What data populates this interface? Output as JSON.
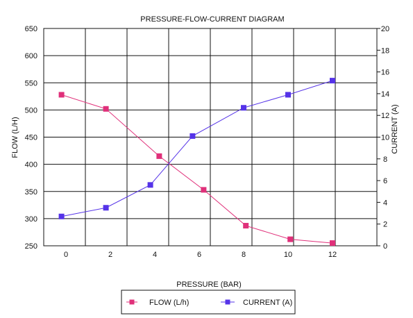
{
  "chart_data": {
    "type": "line",
    "title": "PRESSURE-FLOW-CURRENT DIAGRAM",
    "xlabel": "PRESSURE (BAR)",
    "ylabel_left": "FLOW (L/H)",
    "ylabel_right": "CURRENT (A)",
    "xlim": [
      -1,
      14
    ],
    "ylim_left": [
      250,
      650
    ],
    "ylim_right": [
      0,
      20
    ],
    "x_ticks": [
      0,
      2,
      4,
      6,
      8,
      10,
      12
    ],
    "y_left_ticks": [
      250,
      300,
      350,
      400,
      450,
      500,
      550,
      600,
      650
    ],
    "y_right_ticks": [
      0,
      2,
      4,
      6,
      8,
      10,
      12,
      14,
      16,
      18,
      20
    ],
    "grid": true,
    "legend_position": "bottom-center",
    "series": [
      {
        "name": "FLOW (L/h)",
        "axis": "left",
        "color": "#e0307a",
        "x": [
          -0.2,
          1.8,
          4.2,
          6.2,
          8.1,
          10.1,
          12.0
        ],
        "values": [
          528,
          502,
          415,
          353,
          287,
          262,
          255
        ]
      },
      {
        "name": "CURRENT (A)",
        "axis": "right",
        "color": "#5533e8",
        "x": [
          -0.2,
          1.8,
          3.8,
          5.7,
          8.0,
          10.0,
          12.0
        ],
        "values": [
          2.7,
          3.5,
          5.6,
          10.1,
          12.7,
          13.9,
          15.2
        ]
      }
    ]
  }
}
